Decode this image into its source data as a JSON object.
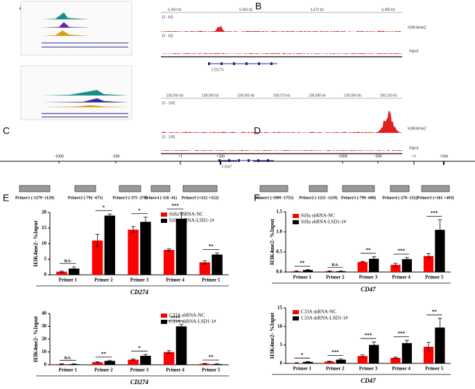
{
  "panel_labels": [
    "A",
    "B",
    "C",
    "D",
    "E",
    "F"
  ],
  "browser": {
    "tracks": [
      "H3K4me2",
      "Input"
    ],
    "top": {
      "scale": "[0 - 60]",
      "gene": "CD274",
      "axis": [
        "6,450 kb",
        "6,460 kb",
        "6,470 kb",
        "6,480 kb"
      ]
    },
    "bottom": {
      "scale": "[0 - 100]",
      "gene": "CD47",
      "axis": [
        "108,040 kb",
        "108,050 kb",
        "108,060 kb",
        "108,070 kb",
        "108,080 kb",
        "108,090 kb",
        "108,100 kb"
      ]
    }
  },
  "primer_maps": [
    {
      "scale": [
        "-1000",
        "-500",
        "+1",
        "+500"
      ],
      "primers": [
        "Primer1 (-1279 -1129)",
        "Primer2 (-792 -671)",
        "Primer3 (-375 -275)",
        "Primer4 (-110 -41)",
        "Primer5 (+212 +312)"
      ]
    },
    {
      "scale": [
        "-1000",
        "-500",
        "+1",
        "+500"
      ],
      "primers": [
        "Primer1 (-1909 -1755)",
        "Primer2 (-1211 -1119)",
        "Primer3 (-799 -608)",
        "Primer4 (-270 -152)",
        "Primer5 (+361 +493)"
      ]
    }
  ],
  "chart_data": [
    {
      "type": "bar",
      "ylabel": "H3K4me2- %Input",
      "xlabel": "CD274",
      "categories": [
        "Primer 1",
        "Primer 2",
        "Primer 3",
        "Primer 4",
        "Primer 5"
      ],
      "series": [
        {
          "name": "SiHa shRNA-NC",
          "color": "#ff0000",
          "values": [
            1,
            11,
            14.5,
            8,
            4
          ],
          "errors": [
            0.2,
            2,
            1,
            0.3,
            0.5
          ]
        },
        {
          "name": "SiHa shRNA-LSD1-1#",
          "color": "#000000",
          "values": [
            2,
            19,
            17,
            18,
            6.5
          ],
          "errors": [
            0.5,
            0.5,
            1.5,
            2,
            0.5
          ]
        }
      ],
      "ylim": [
        0,
        20
      ],
      "yticks": [
        0,
        5,
        10,
        15,
        20
      ],
      "annotations": [
        "n.s.",
        "*",
        "*",
        "***",
        "**"
      ]
    },
    {
      "type": "bar",
      "ylabel": "H3K4me2- %Input",
      "xlabel": "CD274",
      "categories": [
        "Primer 1",
        "Primer 2",
        "Primer 3",
        "Primer 4",
        "Primer 5"
      ],
      "series": [
        {
          "name": "C33A shRNA-NC",
          "color": "#ff0000",
          "values": [
            0.5,
            2,
            4,
            10,
            0.8
          ],
          "errors": [
            0.2,
            0.3,
            0.5,
            1,
            0.2
          ]
        },
        {
          "name": "C33A shRNA-LSD1-1#",
          "color": "#000000",
          "values": [
            0.5,
            3,
            7,
            30,
            0.5
          ],
          "errors": [
            0.2,
            0.3,
            1,
            1.5,
            0.2
          ]
        }
      ],
      "ylim": [
        0,
        40
      ],
      "yticks": [
        0,
        10,
        20,
        30,
        40
      ],
      "annotations": [
        "n.s.",
        "**",
        "*",
        "****",
        "**"
      ]
    },
    {
      "type": "bar",
      "ylabel": "H3K4me2- %Input",
      "xlabel": "CD47",
      "categories": [
        "Primer 1",
        "Primer 2",
        "Primer 3",
        "Primer 4",
        "Primer 5"
      ],
      "series": [
        {
          "name": "SiHa shRNA-NC",
          "color": "#ff0000",
          "values": [
            0.02,
            0.02,
            0.25,
            0.18,
            0.4
          ],
          "errors": [
            0.01,
            0.01,
            0.02,
            0.04,
            0.06
          ]
        },
        {
          "name": "SiHa shRNA-LSD1-1#",
          "color": "#000000",
          "values": [
            0.05,
            0.02,
            0.33,
            0.32,
            1.05
          ],
          "errors": [
            0.01,
            0.01,
            0.05,
            0.04,
            0.25
          ]
        }
      ],
      "ylim": [
        0,
        1.5
      ],
      "yticks": [
        {
          "value": 0,
          "label": "0.0"
        },
        0.5,
        {
          "value": 1,
          "label": "1.0"
        },
        1.5
      ],
      "annotations": [
        "**",
        "n.s.",
        "**",
        "***",
        "***"
      ]
    },
    {
      "type": "bar",
      "ylabel": "H3K4me2- %Input",
      "xlabel": "CD47",
      "categories": [
        "Primer 1",
        "Primer 2",
        "Primer 3",
        "Primer 4",
        "Primer 5"
      ],
      "series": [
        {
          "name": "C33A shRNA-NC",
          "color": "#ff0000",
          "values": [
            0.1,
            0.5,
            2,
            1.5,
            4.5
          ],
          "errors": [
            0.05,
            0.1,
            0.3,
            0.2,
            1.2
          ]
        },
        {
          "name": "C33A shRNA-LSD1-1#",
          "color": "#000000",
          "values": [
            0.4,
            1,
            5,
            5.5,
            9.7
          ],
          "errors": [
            0.1,
            0.2,
            0.8,
            0.8,
            2.5
          ]
        }
      ],
      "ylim": [
        0,
        15
      ],
      "yticks": [
        0,
        5,
        10,
        15
      ],
      "annotations": [
        "*",
        "***",
        "***",
        "***",
        "**"
      ]
    }
  ]
}
